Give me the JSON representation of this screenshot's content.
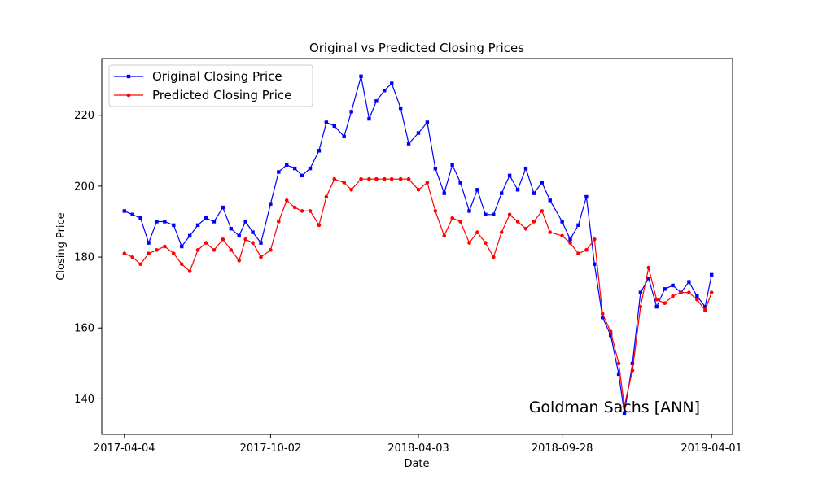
{
  "chart_data": {
    "type": "line",
    "title": "Original vs Predicted Closing Prices",
    "xlabel": "Date",
    "ylabel": "Closing Price",
    "x_ticks": [
      "2017-04-04",
      "2017-10-02",
      "2018-04-03",
      "2018-09-28",
      "2019-04-01"
    ],
    "y_ticks": [
      140,
      160,
      180,
      200,
      220
    ],
    "xlim": [
      "2017-03-07",
      "2019-04-27"
    ],
    "ylim": [
      130,
      236
    ],
    "grid": false,
    "legend_position": "top-left",
    "annotation": "Goldman Sachs [ANN]",
    "series": [
      {
        "name": "Original Closing Price",
        "color": "#0000ff",
        "marker": "square",
        "points": [
          [
            "2017-04-04",
            193
          ],
          [
            "2017-04-14",
            192
          ],
          [
            "2017-04-24",
            191
          ],
          [
            "2017-05-04",
            184
          ],
          [
            "2017-05-14",
            190
          ],
          [
            "2017-05-24",
            190
          ],
          [
            "2017-06-04",
            189
          ],
          [
            "2017-06-14",
            183
          ],
          [
            "2017-06-24",
            186
          ],
          [
            "2017-07-04",
            189
          ],
          [
            "2017-07-14",
            191
          ],
          [
            "2017-07-24",
            190
          ],
          [
            "2017-08-04",
            194
          ],
          [
            "2017-08-14",
            188
          ],
          [
            "2017-08-24",
            186
          ],
          [
            "2017-09-01",
            190
          ],
          [
            "2017-09-10",
            187
          ],
          [
            "2017-09-20",
            184
          ],
          [
            "2017-10-02",
            195
          ],
          [
            "2017-10-12",
            204
          ],
          [
            "2017-10-22",
            206
          ],
          [
            "2017-11-01",
            205
          ],
          [
            "2017-11-10",
            203
          ],
          [
            "2017-11-20",
            205
          ],
          [
            "2017-12-01",
            210
          ],
          [
            "2017-12-10",
            218
          ],
          [
            "2017-12-20",
            217
          ],
          [
            "2018-01-01",
            214
          ],
          [
            "2018-01-10",
            221
          ],
          [
            "2018-01-22",
            231
          ],
          [
            "2018-02-01",
            219
          ],
          [
            "2018-02-10",
            224
          ],
          [
            "2018-02-20",
            227
          ],
          [
            "2018-03-01",
            229
          ],
          [
            "2018-03-12",
            222
          ],
          [
            "2018-03-22",
            212
          ],
          [
            "2018-04-03",
            215
          ],
          [
            "2018-04-14",
            218
          ],
          [
            "2018-04-24",
            205
          ],
          [
            "2018-05-05",
            198
          ],
          [
            "2018-05-15",
            206
          ],
          [
            "2018-05-25",
            201
          ],
          [
            "2018-06-05",
            193
          ],
          [
            "2018-06-15",
            199
          ],
          [
            "2018-06-25",
            192
          ],
          [
            "2018-07-05",
            192
          ],
          [
            "2018-07-15",
            198
          ],
          [
            "2018-07-25",
            203
          ],
          [
            "2018-08-04",
            199
          ],
          [
            "2018-08-14",
            205
          ],
          [
            "2018-08-24",
            198
          ],
          [
            "2018-09-03",
            201
          ],
          [
            "2018-09-13",
            196
          ],
          [
            "2018-09-28",
            190
          ],
          [
            "2018-10-08",
            185
          ],
          [
            "2018-10-18",
            189
          ],
          [
            "2018-10-28",
            197
          ],
          [
            "2018-11-07",
            178
          ],
          [
            "2018-11-17",
            163
          ],
          [
            "2018-11-27",
            158
          ],
          [
            "2018-12-07",
            147
          ],
          [
            "2018-12-14",
            136
          ],
          [
            "2018-12-24",
            150
          ],
          [
            "2019-01-03",
            170
          ],
          [
            "2019-01-13",
            174
          ],
          [
            "2019-01-23",
            166
          ],
          [
            "2019-02-02",
            171
          ],
          [
            "2019-02-12",
            172
          ],
          [
            "2019-02-22",
            170
          ],
          [
            "2019-03-04",
            173
          ],
          [
            "2019-03-14",
            169
          ],
          [
            "2019-03-24",
            166
          ],
          [
            "2019-04-01",
            175
          ]
        ]
      },
      {
        "name": "Predicted Closing Price",
        "color": "#ff0000",
        "marker": "circle",
        "points": [
          [
            "2017-04-04",
            181
          ],
          [
            "2017-04-14",
            180
          ],
          [
            "2017-04-24",
            178
          ],
          [
            "2017-05-04",
            181
          ],
          [
            "2017-05-14",
            182
          ],
          [
            "2017-05-24",
            183
          ],
          [
            "2017-06-04",
            181
          ],
          [
            "2017-06-14",
            178
          ],
          [
            "2017-06-24",
            176
          ],
          [
            "2017-07-04",
            182
          ],
          [
            "2017-07-14",
            184
          ],
          [
            "2017-07-24",
            182
          ],
          [
            "2017-08-04",
            185
          ],
          [
            "2017-08-14",
            182
          ],
          [
            "2017-08-24",
            179
          ],
          [
            "2017-09-01",
            185
          ],
          [
            "2017-09-10",
            184
          ],
          [
            "2017-09-20",
            180
          ],
          [
            "2017-10-02",
            182
          ],
          [
            "2017-10-12",
            190
          ],
          [
            "2017-10-22",
            196
          ],
          [
            "2017-11-01",
            194
          ],
          [
            "2017-11-10",
            193
          ],
          [
            "2017-11-20",
            193
          ],
          [
            "2017-12-01",
            189
          ],
          [
            "2017-12-10",
            197
          ],
          [
            "2017-12-20",
            202
          ],
          [
            "2018-01-01",
            201
          ],
          [
            "2018-01-10",
            199
          ],
          [
            "2018-01-22",
            202
          ],
          [
            "2018-02-01",
            202
          ],
          [
            "2018-02-10",
            202
          ],
          [
            "2018-02-20",
            202
          ],
          [
            "2018-03-01",
            202
          ],
          [
            "2018-03-12",
            202
          ],
          [
            "2018-03-22",
            202
          ],
          [
            "2018-04-03",
            199
          ],
          [
            "2018-04-14",
            201
          ],
          [
            "2018-04-24",
            193
          ],
          [
            "2018-05-05",
            186
          ],
          [
            "2018-05-15",
            191
          ],
          [
            "2018-05-25",
            190
          ],
          [
            "2018-06-05",
            184
          ],
          [
            "2018-06-15",
            187
          ],
          [
            "2018-06-25",
            184
          ],
          [
            "2018-07-05",
            180
          ],
          [
            "2018-07-15",
            187
          ],
          [
            "2018-07-25",
            192
          ],
          [
            "2018-08-04",
            190
          ],
          [
            "2018-08-14",
            188
          ],
          [
            "2018-08-24",
            190
          ],
          [
            "2018-09-03",
            193
          ],
          [
            "2018-09-13",
            187
          ],
          [
            "2018-09-28",
            186
          ],
          [
            "2018-10-08",
            184
          ],
          [
            "2018-10-18",
            181
          ],
          [
            "2018-10-28",
            182
          ],
          [
            "2018-11-07",
            185
          ],
          [
            "2018-11-17",
            164
          ],
          [
            "2018-11-27",
            159
          ],
          [
            "2018-12-07",
            150
          ],
          [
            "2018-12-14",
            138
          ],
          [
            "2018-12-24",
            148
          ],
          [
            "2019-01-03",
            166
          ],
          [
            "2019-01-13",
            177
          ],
          [
            "2019-01-23",
            168
          ],
          [
            "2019-02-02",
            167
          ],
          [
            "2019-02-12",
            169
          ],
          [
            "2019-02-22",
            170
          ],
          [
            "2019-03-04",
            170
          ],
          [
            "2019-03-14",
            168
          ],
          [
            "2019-03-24",
            165
          ],
          [
            "2019-04-01",
            170
          ]
        ]
      }
    ]
  }
}
